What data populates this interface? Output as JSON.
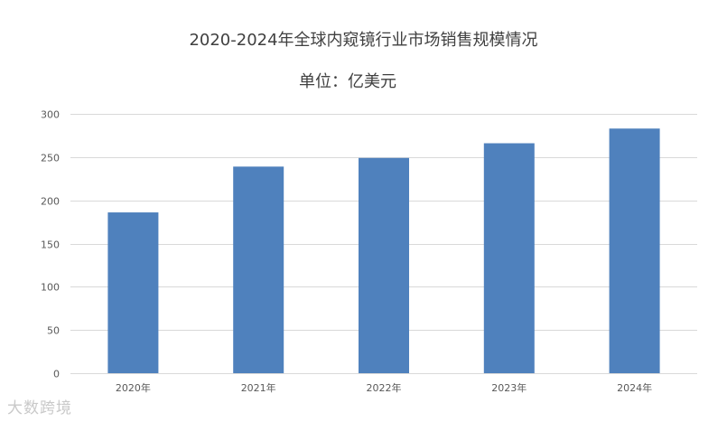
{
  "chart_data": {
    "type": "bar",
    "title": "2020-2024年全球内窥镜行业市场销售规模情况",
    "subtitle": "单位：亿美元",
    "categories": [
      "2020年",
      "2021年",
      "2022年",
      "2023年",
      "2024年"
    ],
    "series": [
      {
        "values": [
          186,
          239,
          249,
          266,
          283
        ]
      }
    ],
    "ylim": [
      0,
      300
    ],
    "yticks": [
      0,
      50,
      100,
      150,
      200,
      250,
      300
    ],
    "grid": true,
    "legend": "none",
    "bar_color": "#4f81bd",
    "grid_color": "#d9d9d9"
  },
  "watermark": "大数跨境"
}
